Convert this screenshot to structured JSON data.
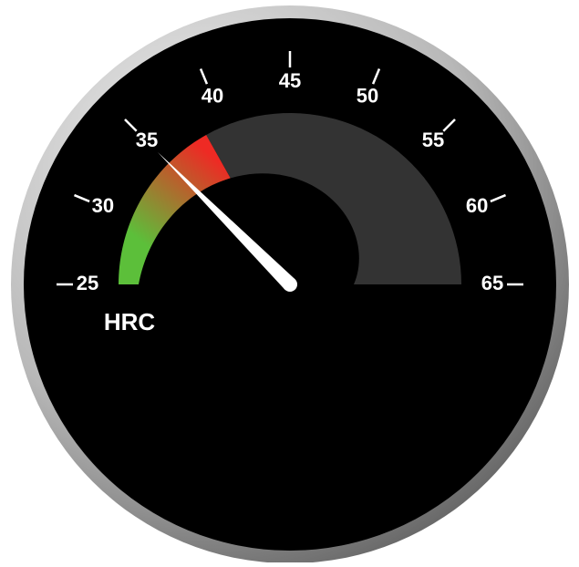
{
  "chart_data": {
    "type": "gauge",
    "axis_label": "HRC",
    "value": 35,
    "fill_value": 38.5,
    "lim": [
      25,
      65
    ],
    "ticks": [
      25,
      30,
      35,
      40,
      45,
      50,
      55,
      60,
      65
    ],
    "fill_colors": [
      "#5cbf3a",
      "#ee2a24"
    ],
    "track_color": "#333333",
    "needle_color": "#ffffff"
  }
}
